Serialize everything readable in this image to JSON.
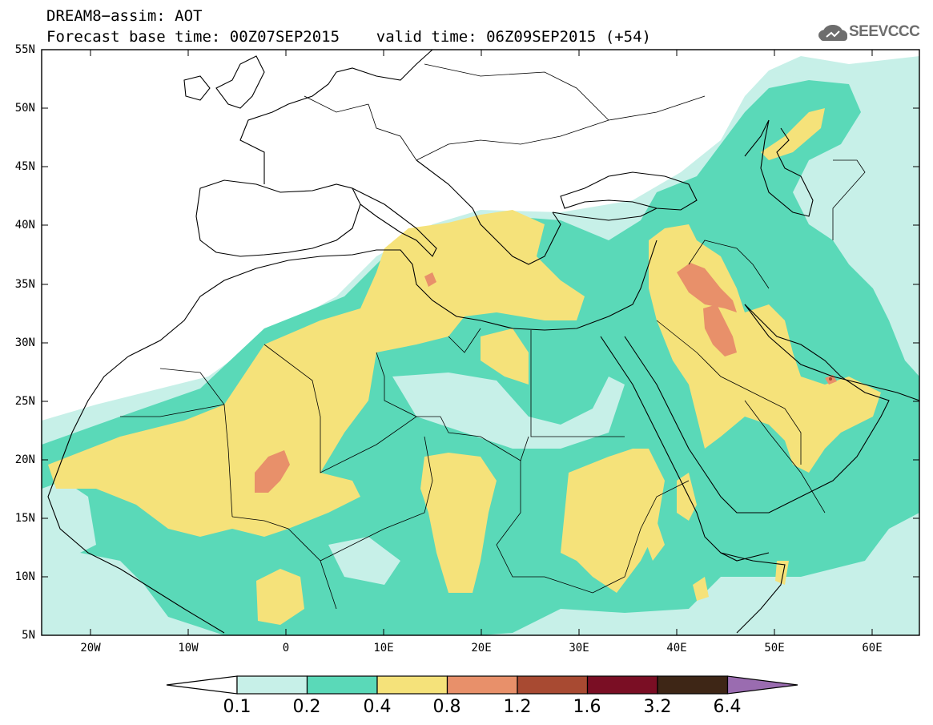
{
  "header": {
    "title_line1": "DREAM8−assim: AOT",
    "title_line2": "Forecast base time: 00Z07SEP2015    valid time: 06Z09SEP2015 (+54)"
  },
  "logo": {
    "text": "SEEVCCC",
    "icon": "cloud-icon",
    "color": "#6d6d6d"
  },
  "map": {
    "lon_range": [
      -25,
      65
    ],
    "lat_range": [
      5,
      55
    ],
    "lat_labels": [
      "55N",
      "50N",
      "45N",
      "40N",
      "35N",
      "30N",
      "25N",
      "20N",
      "15N",
      "10N",
      "5N"
    ],
    "lon_labels": [
      "20W",
      "10W",
      "0",
      "10E",
      "20E",
      "30E",
      "40E",
      "50E",
      "60E"
    ]
  },
  "colorbar": {
    "levels": [
      "0.1",
      "0.2",
      "0.4",
      "0.8",
      "1.2",
      "1.6",
      "3.2",
      "6.4"
    ],
    "colors": [
      "#ffffff",
      "#c7f0e8",
      "#5ad9b8",
      "#f5e27a",
      "#e8906a",
      "#a84a32",
      "#7a0e24",
      "#3e2616",
      "#9a6cb0"
    ]
  }
}
